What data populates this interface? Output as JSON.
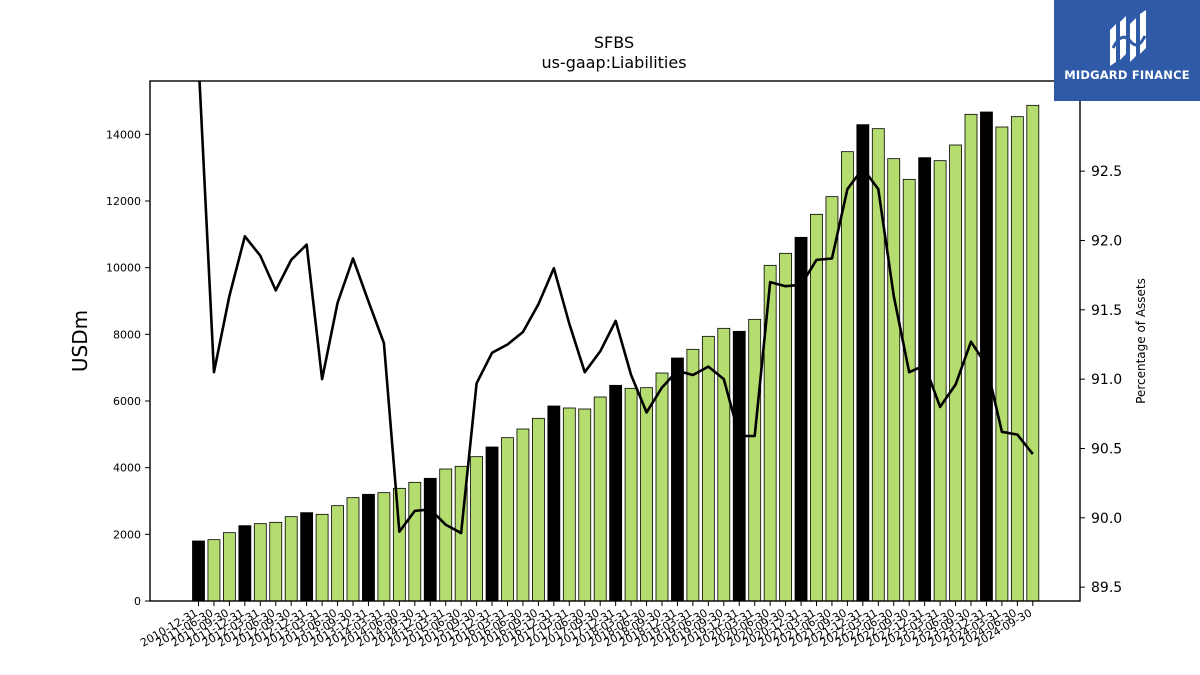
{
  "brand": {
    "name": "MIDGARD FINANCE",
    "box_color": "#2f5aa8"
  },
  "chart_data": {
    "type": "bar",
    "title": "SFBS",
    "subtitle": "us-gaap:Liabilities",
    "ylabel": "USDm",
    "y2label": "Percentage of Assets",
    "ylim": [
      0,
      15600
    ],
    "y2lim": [
      89.4,
      93.15
    ],
    "yticks": [
      0,
      2000,
      4000,
      6000,
      8000,
      10000,
      12000,
      14000
    ],
    "y2ticks": [
      89.5,
      90.0,
      90.5,
      91.0,
      91.5,
      92.0,
      92.5
    ],
    "colors": {
      "bar": "#b5dc6e",
      "bar_q4": "#000000",
      "line": "#000000"
    },
    "categories": [
      "2010-12-31",
      "2011-06-30",
      "2011-09-30",
      "2011-12-31",
      "2012-03-31",
      "2012-06-30",
      "2012-09-30",
      "2012-12-31",
      "2013-03-31",
      "2013-06-30",
      "2013-09-30",
      "2013-12-31",
      "2014-03-31",
      "2014-06-30",
      "2014-09-30",
      "2014-12-31",
      "2015-03-31",
      "2015-06-30",
      "2015-09-30",
      "2015-12-31",
      "2016-03-31",
      "2016-06-30",
      "2016-09-30",
      "2016-12-31",
      "2017-03-31",
      "2017-06-30",
      "2017-09-30",
      "2017-12-31",
      "2018-03-31",
      "2018-06-30",
      "2018-09-30",
      "2018-12-31",
      "2019-03-31",
      "2019-06-30",
      "2019-09-30",
      "2019-12-31",
      "2020-03-31",
      "2020-06-30",
      "2020-09-30",
      "2020-12-31",
      "2021-03-31",
      "2021-06-30",
      "2021-09-30",
      "2021-12-31",
      "2022-03-31",
      "2022-06-30",
      "2022-09-30",
      "2022-12-31",
      "2023-03-31",
      "2023-06-30",
      "2023-09-30",
      "2023-12-31",
      "2024-03-31",
      "2024-06-30",
      "2024-09-30"
    ],
    "series": [
      {
        "type": "bar",
        "axis": "left",
        "values": [
          1800,
          1840,
          2050,
          2260,
          2320,
          2360,
          2530,
          2650,
          2600,
          2860,
          3100,
          3200,
          3250,
          3380,
          3560,
          3680,
          3960,
          4040,
          4330,
          4620,
          4900,
          5160,
          5480,
          5850,
          5790,
          5760,
          6120,
          6470,
          6380,
          6400,
          6840,
          7290,
          7550,
          7940,
          8180,
          8090,
          8450,
          10070,
          10430,
          10910,
          11600,
          12130,
          13480,
          14290,
          14170,
          13270,
          12650,
          13300,
          13210,
          13680,
          14600,
          14670,
          14220,
          14530,
          14870
        ]
      },
      {
        "type": "line",
        "axis": "right",
        "values": [
          93.3,
          91.05,
          91.6,
          92.03,
          91.89,
          91.64,
          91.86,
          91.97,
          91.0,
          91.55,
          91.87,
          91.56,
          91.26,
          89.9,
          90.05,
          90.06,
          89.95,
          89.89,
          90.97,
          91.19,
          91.25,
          91.34,
          91.54,
          91.8,
          91.4,
          91.05,
          91.2,
          91.42,
          91.03,
          90.76,
          90.94,
          91.06,
          91.03,
          91.09,
          91.0,
          90.59,
          90.59,
          91.7,
          91.67,
          91.68,
          91.86,
          91.87,
          92.37,
          92.52,
          92.37,
          91.6,
          91.05,
          91.1,
          90.8,
          90.96,
          91.27,
          91.1,
          90.62,
          90.6,
          90.46
        ]
      }
    ]
  }
}
